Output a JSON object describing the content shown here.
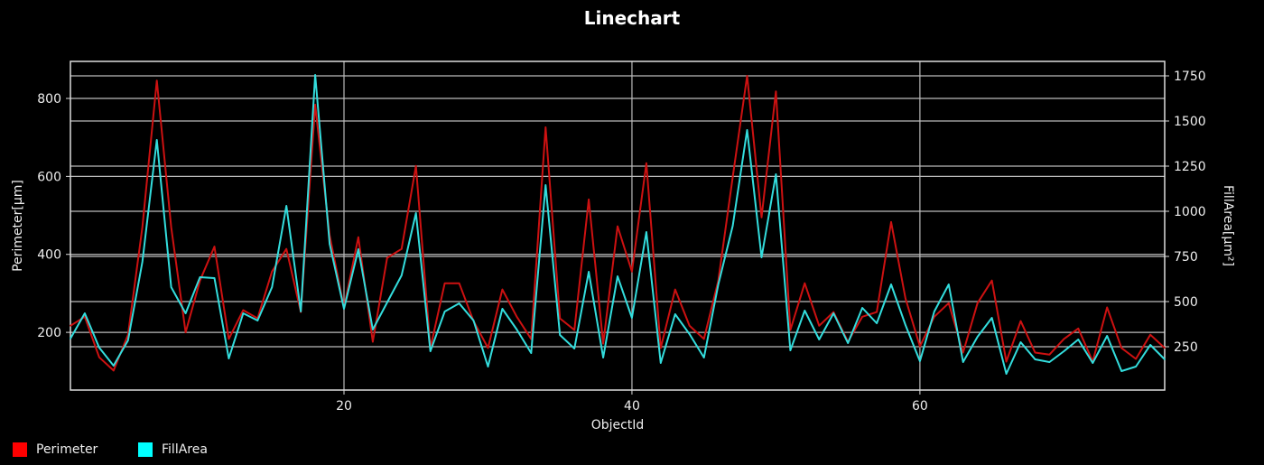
{
  "chart_data": {
    "type": "line",
    "title": "Linechart",
    "xlabel": "ObjectId",
    "ylabel": "Perimeter[µm]",
    "y2label": "FillArea[µm²]",
    "xlim": [
      1,
      77
    ],
    "ylim": [
      52,
      895
    ],
    "y2lim": [
      10,
      1830
    ],
    "xticks": [
      20,
      40,
      60
    ],
    "yticks": [
      200,
      400,
      600,
      800
    ],
    "y2ticks": [
      250,
      500,
      750,
      1000,
      1250,
      1500,
      1750
    ],
    "grid": true,
    "legend_position": "bottom-left",
    "background": "#000000",
    "x": [
      1,
      2,
      3,
      4,
      5,
      6,
      7,
      8,
      9,
      10,
      11,
      12,
      13,
      14,
      15,
      16,
      17,
      18,
      19,
      20,
      21,
      22,
      23,
      24,
      25,
      26,
      27,
      28,
      29,
      30,
      31,
      32,
      33,
      34,
      35,
      36,
      37,
      38,
      39,
      40,
      41,
      42,
      43,
      44,
      45,
      46,
      47,
      48,
      49,
      50,
      51,
      52,
      53,
      54,
      55,
      56,
      57,
      58,
      59,
      60,
      61,
      62,
      63,
      64,
      65,
      66,
      67,
      68,
      69,
      70,
      71,
      72,
      73,
      74,
      75,
      76,
      77
    ],
    "series": [
      {
        "name": "Perimeter",
        "axis": "left",
        "color": "#cc1111",
        "values": [
          217,
          240,
          136,
          102,
          194,
          470,
          846,
          470,
          200,
          333,
          420,
          183,
          257,
          236,
          356,
          414,
          252,
          784,
          449,
          264,
          444,
          176,
          391,
          414,
          627,
          160,
          326,
          326,
          229,
          160,
          310,
          240,
          183,
          726,
          236,
          206,
          541,
          171,
          472,
          356,
          634,
          160,
          310,
          217,
          183,
          333,
          599,
          858,
          495,
          818,
          206,
          326,
          217,
          252,
          176,
          240,
          252,
          483,
          287,
          164,
          240,
          275,
          148,
          275,
          333,
          125,
          229,
          148,
          143,
          183,
          210,
          125,
          264,
          160,
          132,
          194,
          160
        ]
      },
      {
        "name": "FillArea",
        "axis": "right",
        "color": "#33dddd",
        "values": [
          295,
          435,
          245,
          145,
          285,
          720,
          1395,
          580,
          435,
          635,
          630,
          185,
          435,
          395,
          580,
          1030,
          445,
          1755,
          820,
          460,
          790,
          345,
          495,
          645,
          990,
          225,
          445,
          490,
          395,
          140,
          460,
          345,
          215,
          1145,
          315,
          240,
          665,
          190,
          640,
          410,
          885,
          160,
          430,
          320,
          190,
          595,
          920,
          1450,
          745,
          1205,
          230,
          450,
          290,
          435,
          270,
          465,
          380,
          595,
          370,
          170,
          445,
          595,
          165,
          305,
          410,
          100,
          275,
          180,
          165,
          225,
          290,
          160,
          310,
          115,
          140,
          260,
          180
        ]
      }
    ]
  },
  "legend": [
    {
      "label": "Perimeter",
      "color": "#ff0000"
    },
    {
      "label": "FillArea",
      "color": "#00ffff"
    }
  ]
}
